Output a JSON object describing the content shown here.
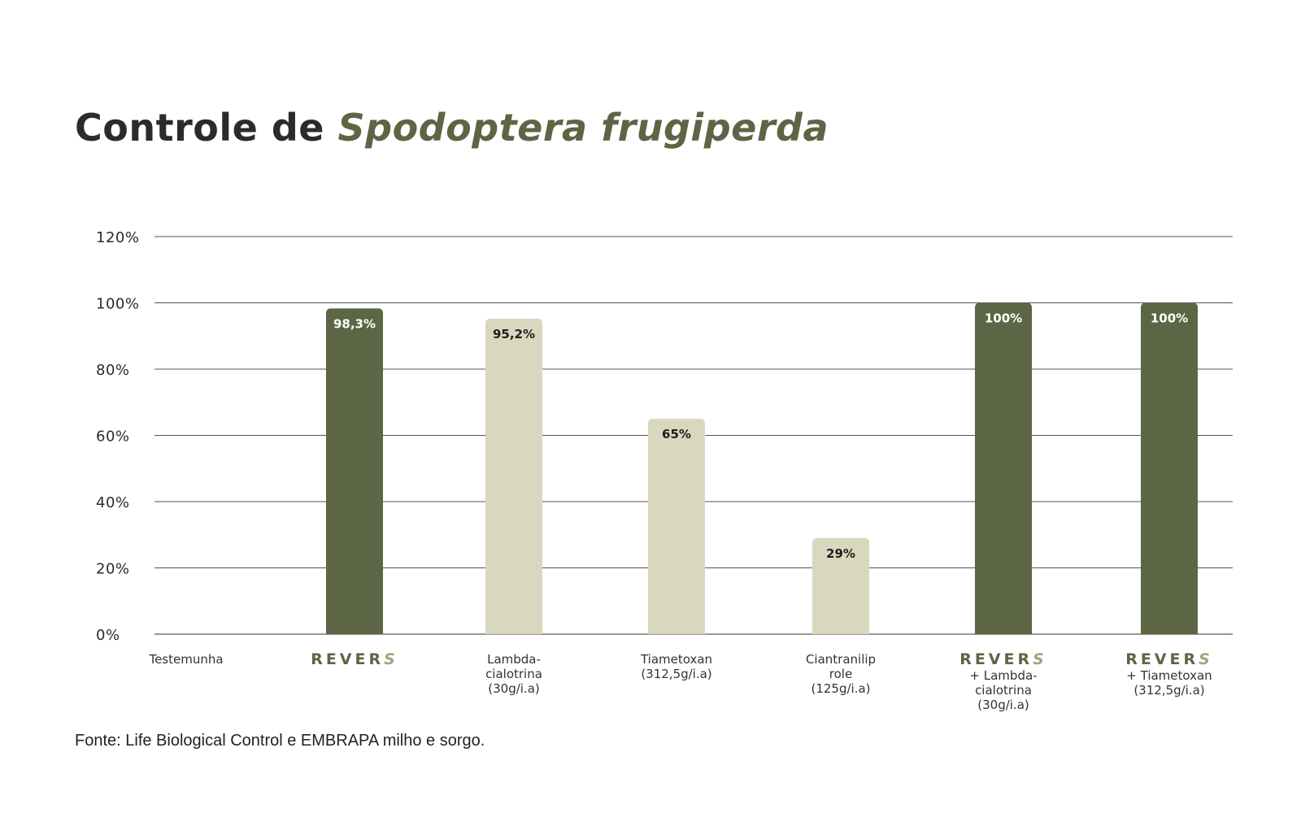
{
  "title": {
    "prefix": "Controle de ",
    "species": "Spodoptera frugiperda"
  },
  "colors": {
    "accent": "#5c6644",
    "light_bar": "#d9d7bd",
    "brand_last": "#a3a37a",
    "grid": "#555555"
  },
  "chart_data": {
    "type": "bar",
    "ylim": [
      0,
      120
    ],
    "yticks": [
      0,
      20,
      40,
      60,
      80,
      100,
      120
    ],
    "ytick_labels": [
      "0%",
      "20%",
      "40%",
      "60%",
      "80%",
      "100%",
      "120%"
    ],
    "grid": true,
    "categories": [
      {
        "lines": [
          "Testemunha"
        ],
        "brand": false
      },
      {
        "lines": [],
        "brand": true
      },
      {
        "lines": [
          "Lambda-",
          "cialotrina",
          "(30g/i.a)"
        ],
        "brand": false
      },
      {
        "lines": [
          "Tiametoxan",
          "(312,5g/i.a)"
        ],
        "brand": false
      },
      {
        "lines": [
          "Ciantranilip",
          "role",
          "(125g/i.a)"
        ],
        "brand": false
      },
      {
        "lines": [
          "+ Lambda-",
          "cialotrina",
          "(30g/i.a)"
        ],
        "brand": true
      },
      {
        "lines": [
          "+ Tiametoxan",
          "(312,5g/i.a)"
        ],
        "brand": true
      }
    ],
    "values": [
      0,
      98.3,
      95.2,
      65,
      29,
      100,
      100
    ],
    "value_labels": [
      "",
      "98,3%",
      "95,2%",
      "65%",
      "29%",
      "100%",
      "100%"
    ],
    "bar_style": [
      "none",
      "dark",
      "light",
      "light",
      "light",
      "dark",
      "dark"
    ],
    "brand_text": {
      "main": "REVER",
      "last": "S"
    }
  },
  "source": "Fonte: Life Biological Control e EMBRAPA milho e sorgo."
}
